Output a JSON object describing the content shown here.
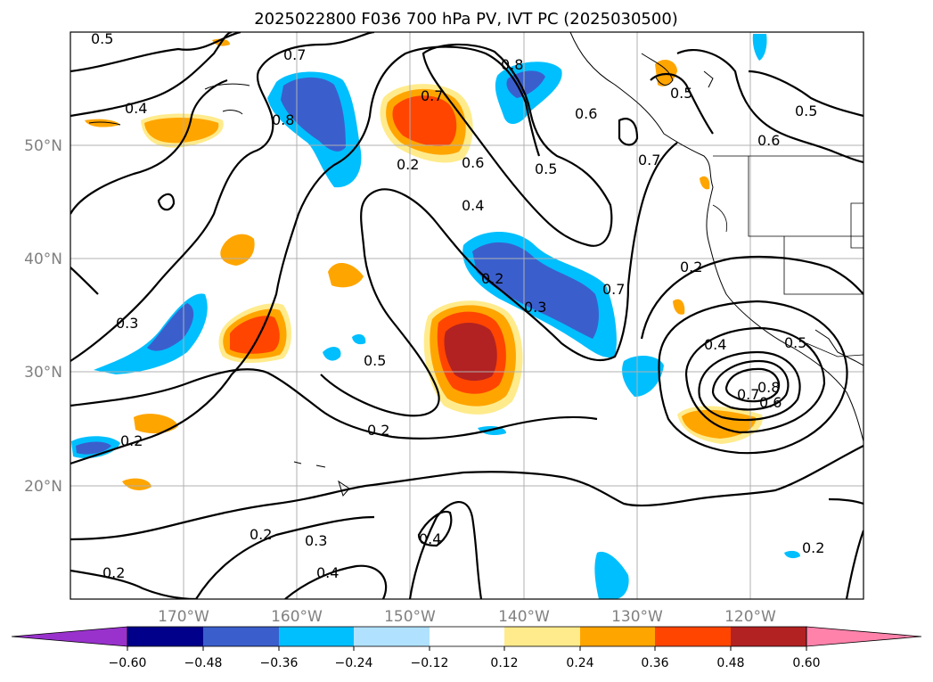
{
  "title": "2025022800 F036 700 hPa PV, IVT PC (2025030500)",
  "lat_labels": [
    "50°N",
    "40°N",
    "30°N",
    "20°N"
  ],
  "lon_labels": [
    "170°W",
    "160°W",
    "150°W",
    "140°W",
    "130°W",
    "120°W"
  ],
  "colorbar": {
    "ticks": [
      "−0.60",
      "−0.48",
      "−0.36",
      "−0.24",
      "−0.12",
      "0.12",
      "0.24",
      "0.36",
      "0.48",
      "0.60"
    ],
    "colors": [
      "#9932cc",
      "#00008b",
      "#3a5fcd",
      "#00bfff",
      "#b0e2ff",
      "#ffffff",
      "#ffeb8c",
      "#ffa500",
      "#ff4500",
      "#b22222",
      "#ff82ab"
    ]
  },
  "contour_labels": [
    "0.5",
    "0.7",
    "0.8",
    "0.4",
    "0.7",
    "0.2",
    "0.6",
    "0.6",
    "0.8",
    "0.5",
    "0.7",
    "0.5",
    "0.5",
    "0.6",
    "0.4",
    "0.2",
    "0.3",
    "0.7",
    "0.2",
    "0.3",
    "0.5",
    "0.4",
    "0.8",
    "0.7",
    "0.6",
    "0.5",
    "0.2",
    "0.2",
    "0.2",
    "0.3",
    "0.4",
    "0.4",
    "0.2",
    "0.2"
  ],
  "fill_colors": {
    "blue_dark": "#3a5fcd",
    "blue": "#00bfff",
    "blue_light": "#b0e2ff",
    "navy": "#00008b",
    "yellow": "#ffeb8c",
    "orange": "#ffa500",
    "red_orange": "#ff4500",
    "dark_red": "#b22222"
  }
}
